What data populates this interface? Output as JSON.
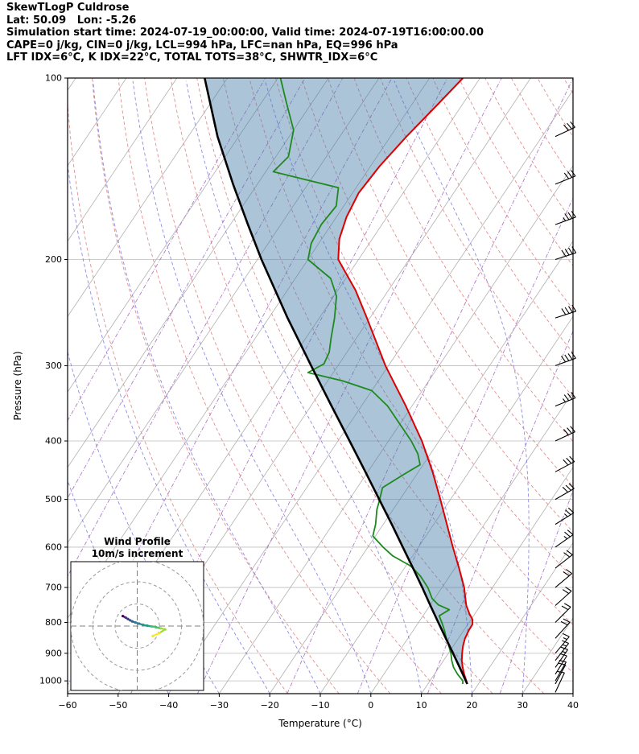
{
  "header": {
    "title": "SkewTLogP Culdrose",
    "location": "Lat: 50.09   Lon: -5.26",
    "times": "Simulation start time: 2024-07-19_00:00:00, Valid time: 2024-07-19T16:00:00.00",
    "cape_line": "CAPE=0 j/kg, CIN=0 j/kg, LCL=994 hPa, LFC=nan hPa, EQ=996 hPa",
    "indices_line": "LFT IDX=6°C, K IDX=22°C, TOTAL TOTS=38°C, SHWTR_IDX=6°C"
  },
  "chart_data": {
    "type": "skewt_logp",
    "station": "Culdrose",
    "derived_indices": {
      "cape_j_kg": 0,
      "cin_j_kg": 0,
      "lcl_hpa": 994,
      "lfc_hpa": "nan",
      "eq_hpa": 996,
      "lifted_index_c": 6,
      "k_index_c": 22,
      "total_totals_c": 38,
      "showalter_index_c": 6
    },
    "p_range": [
      100,
      1050
    ],
    "t_range": [
      -60,
      40
    ],
    "skew": 0.67,
    "x_axis": {
      "label": "Temperature (°C)",
      "tick_values": [
        -60,
        -50,
        -40,
        -30,
        -20,
        -10,
        0,
        10,
        20,
        30,
        40
      ],
      "tick_labels": [
        "−60",
        "−50",
        "−40",
        "−30",
        "−20",
        "−10",
        "0",
        "10",
        "20",
        "30",
        "40"
      ]
    },
    "y_axis": {
      "label": "Pressure (hPa)",
      "tick_values": [
        100,
        200,
        300,
        400,
        500,
        600,
        700,
        800,
        900,
        1000
      ],
      "tick_labels": [
        "100",
        "200",
        "300",
        "400",
        "500",
        "600",
        "700",
        "800",
        "900",
        "1000"
      ]
    },
    "temperature_profile": {
      "pressure_hpa": [
        1012,
        1000,
        975,
        950,
        925,
        900,
        875,
        850,
        825,
        805,
        790,
        775,
        750,
        725,
        700,
        650,
        600,
        550,
        500,
        450,
        400,
        350,
        300,
        250,
        225,
        200,
        185,
        170,
        155,
        140,
        125,
        110,
        100
      ],
      "temp_c": [
        17.8,
        17.2,
        15.9,
        14.7,
        13.6,
        12.7,
        11.9,
        11.3,
        11.0,
        10.9,
        10.2,
        9.0,
        7.2,
        5.8,
        4.4,
        0.8,
        -3.2,
        -7.4,
        -12.0,
        -17.2,
        -23.4,
        -31.2,
        -40.6,
        -50.6,
        -56.5,
        -64.0,
        -66.5,
        -68.0,
        -68.8,
        -68.2,
        -66.8,
        -64.8,
        -63.4
      ]
    },
    "dewpoint_profile": {
      "pressure_hpa": [
        1012,
        1000,
        975,
        950,
        925,
        900,
        875,
        850,
        825,
        800,
        780,
        762,
        748,
        730,
        700,
        670,
        645,
        620,
        600,
        575,
        550,
        520,
        500,
        478,
        455,
        438,
        420,
        400,
        375,
        350,
        330,
        318,
        308,
        298,
        285,
        270,
        250,
        230,
        215,
        200,
        188,
        175,
        163,
        152,
        143,
        135,
        122,
        110,
        100
      ],
      "temp_c": [
        16.9,
        16.5,
        14.6,
        12.9,
        11.6,
        10.5,
        9.1,
        7.6,
        6.2,
        4.6,
        3.2,
        4.4,
        1.6,
        -0.5,
        -2.8,
        -5.8,
        -9.0,
        -14.0,
        -17.0,
        -20.5,
        -21.5,
        -23.2,
        -24.0,
        -25.0,
        -22.6,
        -20.6,
        -22.5,
        -25.5,
        -30.0,
        -34.8,
        -40.0,
        -47.0,
        -55.0,
        -53.0,
        -53.5,
        -55.0,
        -57.0,
        -59.5,
        -63.0,
        -70.0,
        -71.5,
        -72.0,
        -71.5,
        -73.5,
        -88.5,
        -87.5,
        -90.0,
        -95.0,
        -99.5
      ]
    },
    "parcel_profile": {
      "pressure_hpa": [
        1012,
        1000,
        950,
        900,
        850,
        800,
        750,
        700,
        650,
        600,
        550,
        500,
        450,
        400,
        350,
        300,
        250,
        200,
        175,
        150,
        125,
        100
      ],
      "temp_c": [
        17.8,
        17.1,
        14.1,
        10.9,
        7.5,
        3.9,
        0.1,
        -3.9,
        -8.3,
        -13.1,
        -18.3,
        -24.1,
        -30.5,
        -37.7,
        -45.9,
        -55.3,
        -66.3,
        -79.2,
        -86.5,
        -94.8,
        -104.2,
        -114.5
      ]
    },
    "wind_barbs": {
      "pressure_hpa": [
        1045,
        1012,
        1000,
        975,
        950,
        925,
        900,
        850,
        800,
        750,
        700,
        650,
        600,
        550,
        500,
        450,
        400,
        350,
        300,
        250,
        200,
        175,
        150,
        125
      ],
      "speed_kt": [
        8,
        10,
        12,
        12,
        15,
        15,
        15,
        18,
        20,
        20,
        22,
        22,
        25,
        25,
        28,
        30,
        32,
        35,
        38,
        40,
        38,
        35,
        32,
        30
      ],
      "direction_from_deg": [
        205,
        208,
        210,
        212,
        215,
        218,
        220,
        222,
        225,
        228,
        230,
        232,
        235,
        238,
        240,
        242,
        245,
        248,
        250,
        252,
        252,
        250,
        248,
        245
      ]
    },
    "hodograph": {
      "title": "Wind Profile",
      "subtitle": "10m/s increment",
      "ring_interval_ms": 10,
      "rings_ms": [
        10,
        20,
        30
      ],
      "trace_uv_ms": [
        [
          -6.5,
          4.5
        ],
        [
          -5.2,
          3.8
        ],
        [
          -4.2,
          3.2
        ],
        [
          -3.2,
          2.6
        ],
        [
          -2.2,
          2.1
        ],
        [
          -0.8,
          1.6
        ],
        [
          0.8,
          1.1
        ],
        [
          2.6,
          0.6
        ],
        [
          4.5,
          0.2
        ],
        [
          6.5,
          -0.2
        ],
        [
          8.6,
          -0.6
        ],
        [
          10.6,
          -1.0
        ],
        [
          12.6,
          -1.5
        ],
        [
          10.0,
          -3.2
        ],
        [
          7.0,
          -4.5
        ]
      ],
      "palette": [
        "#440154",
        "#46327e",
        "#365c8d",
        "#277f8e",
        "#1fa187",
        "#4ac16d",
        "#a0da39",
        "#fde725"
      ]
    },
    "background": {
      "isotherms": {
        "start": -140,
        "end": 40,
        "step": 10
      },
      "dry_adiabats_theta_c": [
        -20,
        -10,
        0,
        10,
        20,
        30,
        40,
        50,
        60,
        70,
        80,
        90,
        100,
        110,
        120,
        130,
        140,
        150,
        160,
        170
      ],
      "moist_adiabats_t0_c": [
        -40,
        -30,
        -20,
        -10,
        0,
        10,
        20,
        30,
        40,
        50
      ],
      "mixing_ratio_g_kg": [
        0.0001,
        0.0005,
        0.002,
        0.01,
        0.05,
        0.2,
        1,
        3,
        8,
        20
      ]
    },
    "colors": {
      "temperature_line": "#dd0000",
      "dewpoint_line": "#1e8a1e",
      "parcel_line": "#000000",
      "cin_fill": "rgba(70,124,168,0.45)",
      "isotherm": "#b0b0b0",
      "isobar": "#bdbdbd",
      "dry_adiabat": "#e09090",
      "moist_adiabat": "#7878dd",
      "mixing_ratio": "#b07cc8",
      "wind_barb": "#000000",
      "frame": "#000000",
      "inset_ring": "#999999",
      "inset_cross": "#808080"
    }
  }
}
